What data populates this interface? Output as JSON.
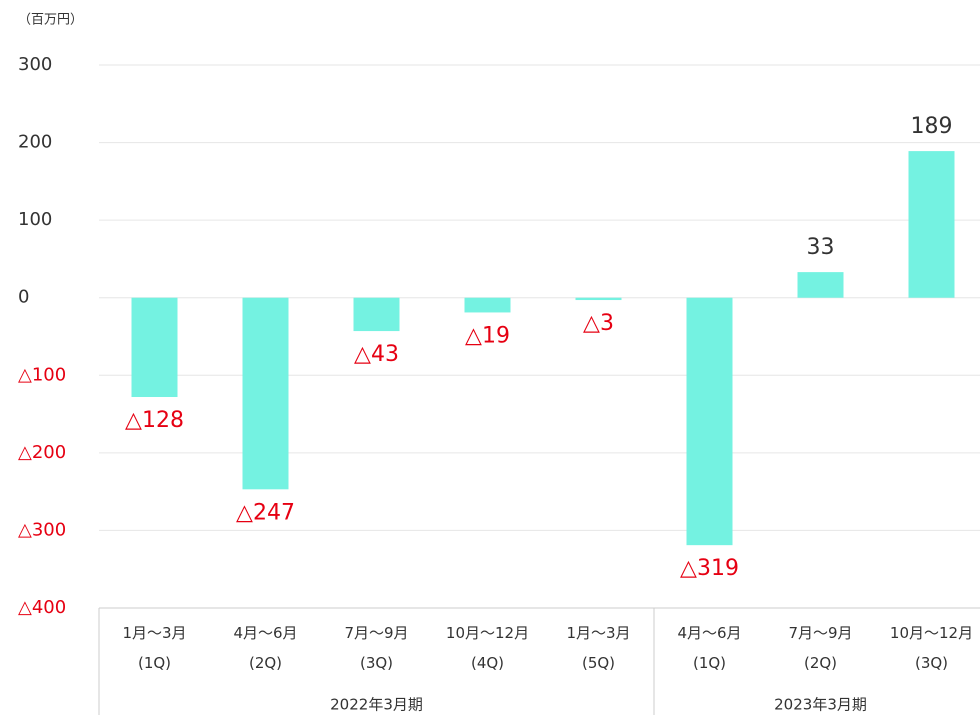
{
  "chart_data": {
    "type": "bar",
    "unit": "（百万円）",
    "categories": [
      "1月〜3月\n(1Q)",
      "4月〜6月\n(2Q)",
      "7月〜9月\n(3Q)",
      "10月〜12月\n(4Q)",
      "1月〜3月\n(5Q)",
      "4月〜6月\n(1Q)",
      "7月〜9月\n(2Q)",
      "10月〜12月\n(3Q)"
    ],
    "groups": [
      {
        "label": "2022年3月期",
        "span": 5
      },
      {
        "label": "2023年3月期",
        "span": 3
      }
    ],
    "values": [
      -128,
      -247,
      -43,
      -19,
      -3,
      -319,
      33,
      189
    ],
    "value_labels": [
      "△128",
      "△247",
      "△43",
      "△19",
      "△3",
      "△319",
      "33",
      "189"
    ],
    "color": "#74f2e1",
    "negative_label_color": "#e60012",
    "ylim": [
      -400,
      300
    ],
    "yticks": [
      {
        "value": -400,
        "label": "△400"
      },
      {
        "value": -300,
        "label": "△300"
      },
      {
        "value": -200,
        "label": "△200"
      },
      {
        "value": -100,
        "label": "△100"
      },
      0,
      100,
      200,
      300
    ],
    "grid": true
  }
}
